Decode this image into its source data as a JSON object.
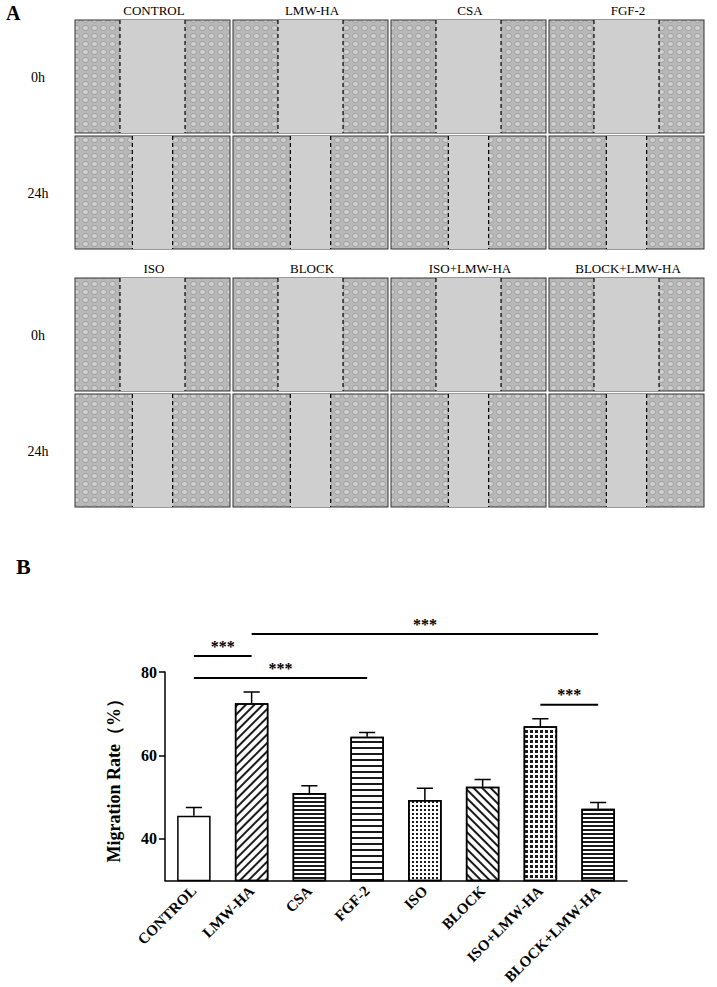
{
  "figure": {
    "panel_a": {
      "label": "A",
      "blocks": [
        {
          "titles": [
            "CONTROL",
            "LMW-HA",
            "CSA",
            "FGF-2"
          ],
          "rows": [
            "0h",
            "24h"
          ]
        },
        {
          "titles": [
            "ISO",
            "BLOCK",
            "ISO+LMW-HA",
            "BLOCK+LMW-HA"
          ],
          "rows": [
            "0h",
            "24h"
          ]
        }
      ]
    },
    "panel_b": {
      "label": "B"
    }
  },
  "chart_data": {
    "type": "bar",
    "y_label": "Migration Rate（%）",
    "categories": [
      "CONTROL",
      "LMW-HA",
      "CSA",
      "FGF-2",
      "ISO",
      "BLOCK",
      "ISO+LMW-HA",
      "BLOCK+LMW-HA"
    ],
    "values": [
      45.5,
      72.5,
      51,
      64.5,
      49.3,
      52.5,
      67,
      47.2
    ],
    "errors": [
      2,
      2.7,
      1.7,
      1,
      2.8,
      1.7,
      1.8,
      1.5
    ],
    "color": "#ffffff",
    "ylim": [
      30,
      80
    ],
    "yticks": [
      40,
      60,
      80
    ],
    "grid": false,
    "annotations": [
      {
        "text": "***",
        "from": "ISO+LMW-HA",
        "to": "BLOCK+LMW-HA"
      },
      {
        "text": "***",
        "from": "CONTROL",
        "to": "FGF-2"
      },
      {
        "text": "***",
        "from": "CONTROL",
        "to": "LMW-HA"
      },
      {
        "text": "***",
        "from": "LMW-HA",
        "to": "BLOCK+LMW-HA"
      }
    ]
  }
}
